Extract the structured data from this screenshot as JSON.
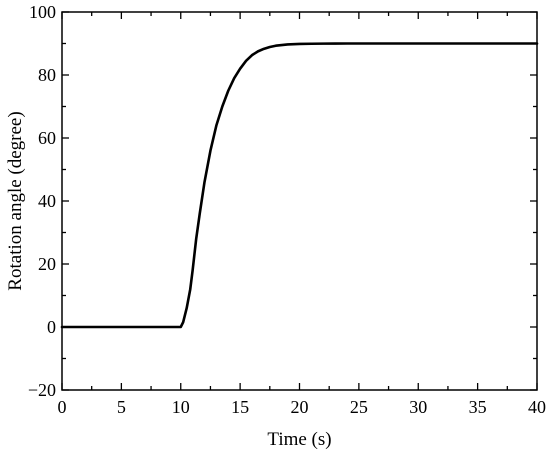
{
  "chart_data": {
    "type": "line",
    "title": "",
    "xlabel": "Time (s)",
    "ylabel": "Rotation angle (degree)",
    "xlim": [
      0,
      40
    ],
    "ylim": [
      -20,
      100
    ],
    "xticks": [
      0,
      5,
      10,
      15,
      20,
      25,
      30,
      35,
      40
    ],
    "yticks": [
      -20,
      0,
      20,
      40,
      60,
      80,
      100
    ],
    "grid": false,
    "legend": "none",
    "line_color": "#000000",
    "series": [
      {
        "x": [
          0,
          2,
          4,
          6,
          8,
          10,
          10.2,
          10.5,
          10.8,
          11.0,
          11.3,
          11.6,
          12.0,
          12.5,
          13.0,
          13.5,
          14.0,
          14.5,
          15.0,
          15.5,
          16.0,
          16.5,
          17.0,
          17.5,
          18.0,
          19.0,
          20.0,
          21.0,
          22.0,
          23.0,
          24.0,
          25.0,
          27.0,
          30.0,
          35.0,
          40.0
        ],
        "y": [
          0,
          0,
          0,
          0,
          0,
          0,
          1.5,
          6,
          12,
          18,
          28,
          36,
          46,
          56,
          64,
          70,
          75,
          79,
          82,
          84.5,
          86.3,
          87.5,
          88.3,
          88.9,
          89.3,
          89.7,
          89.85,
          89.92,
          89.96,
          89.98,
          90,
          90,
          90,
          90,
          90,
          90
        ]
      }
    ]
  }
}
